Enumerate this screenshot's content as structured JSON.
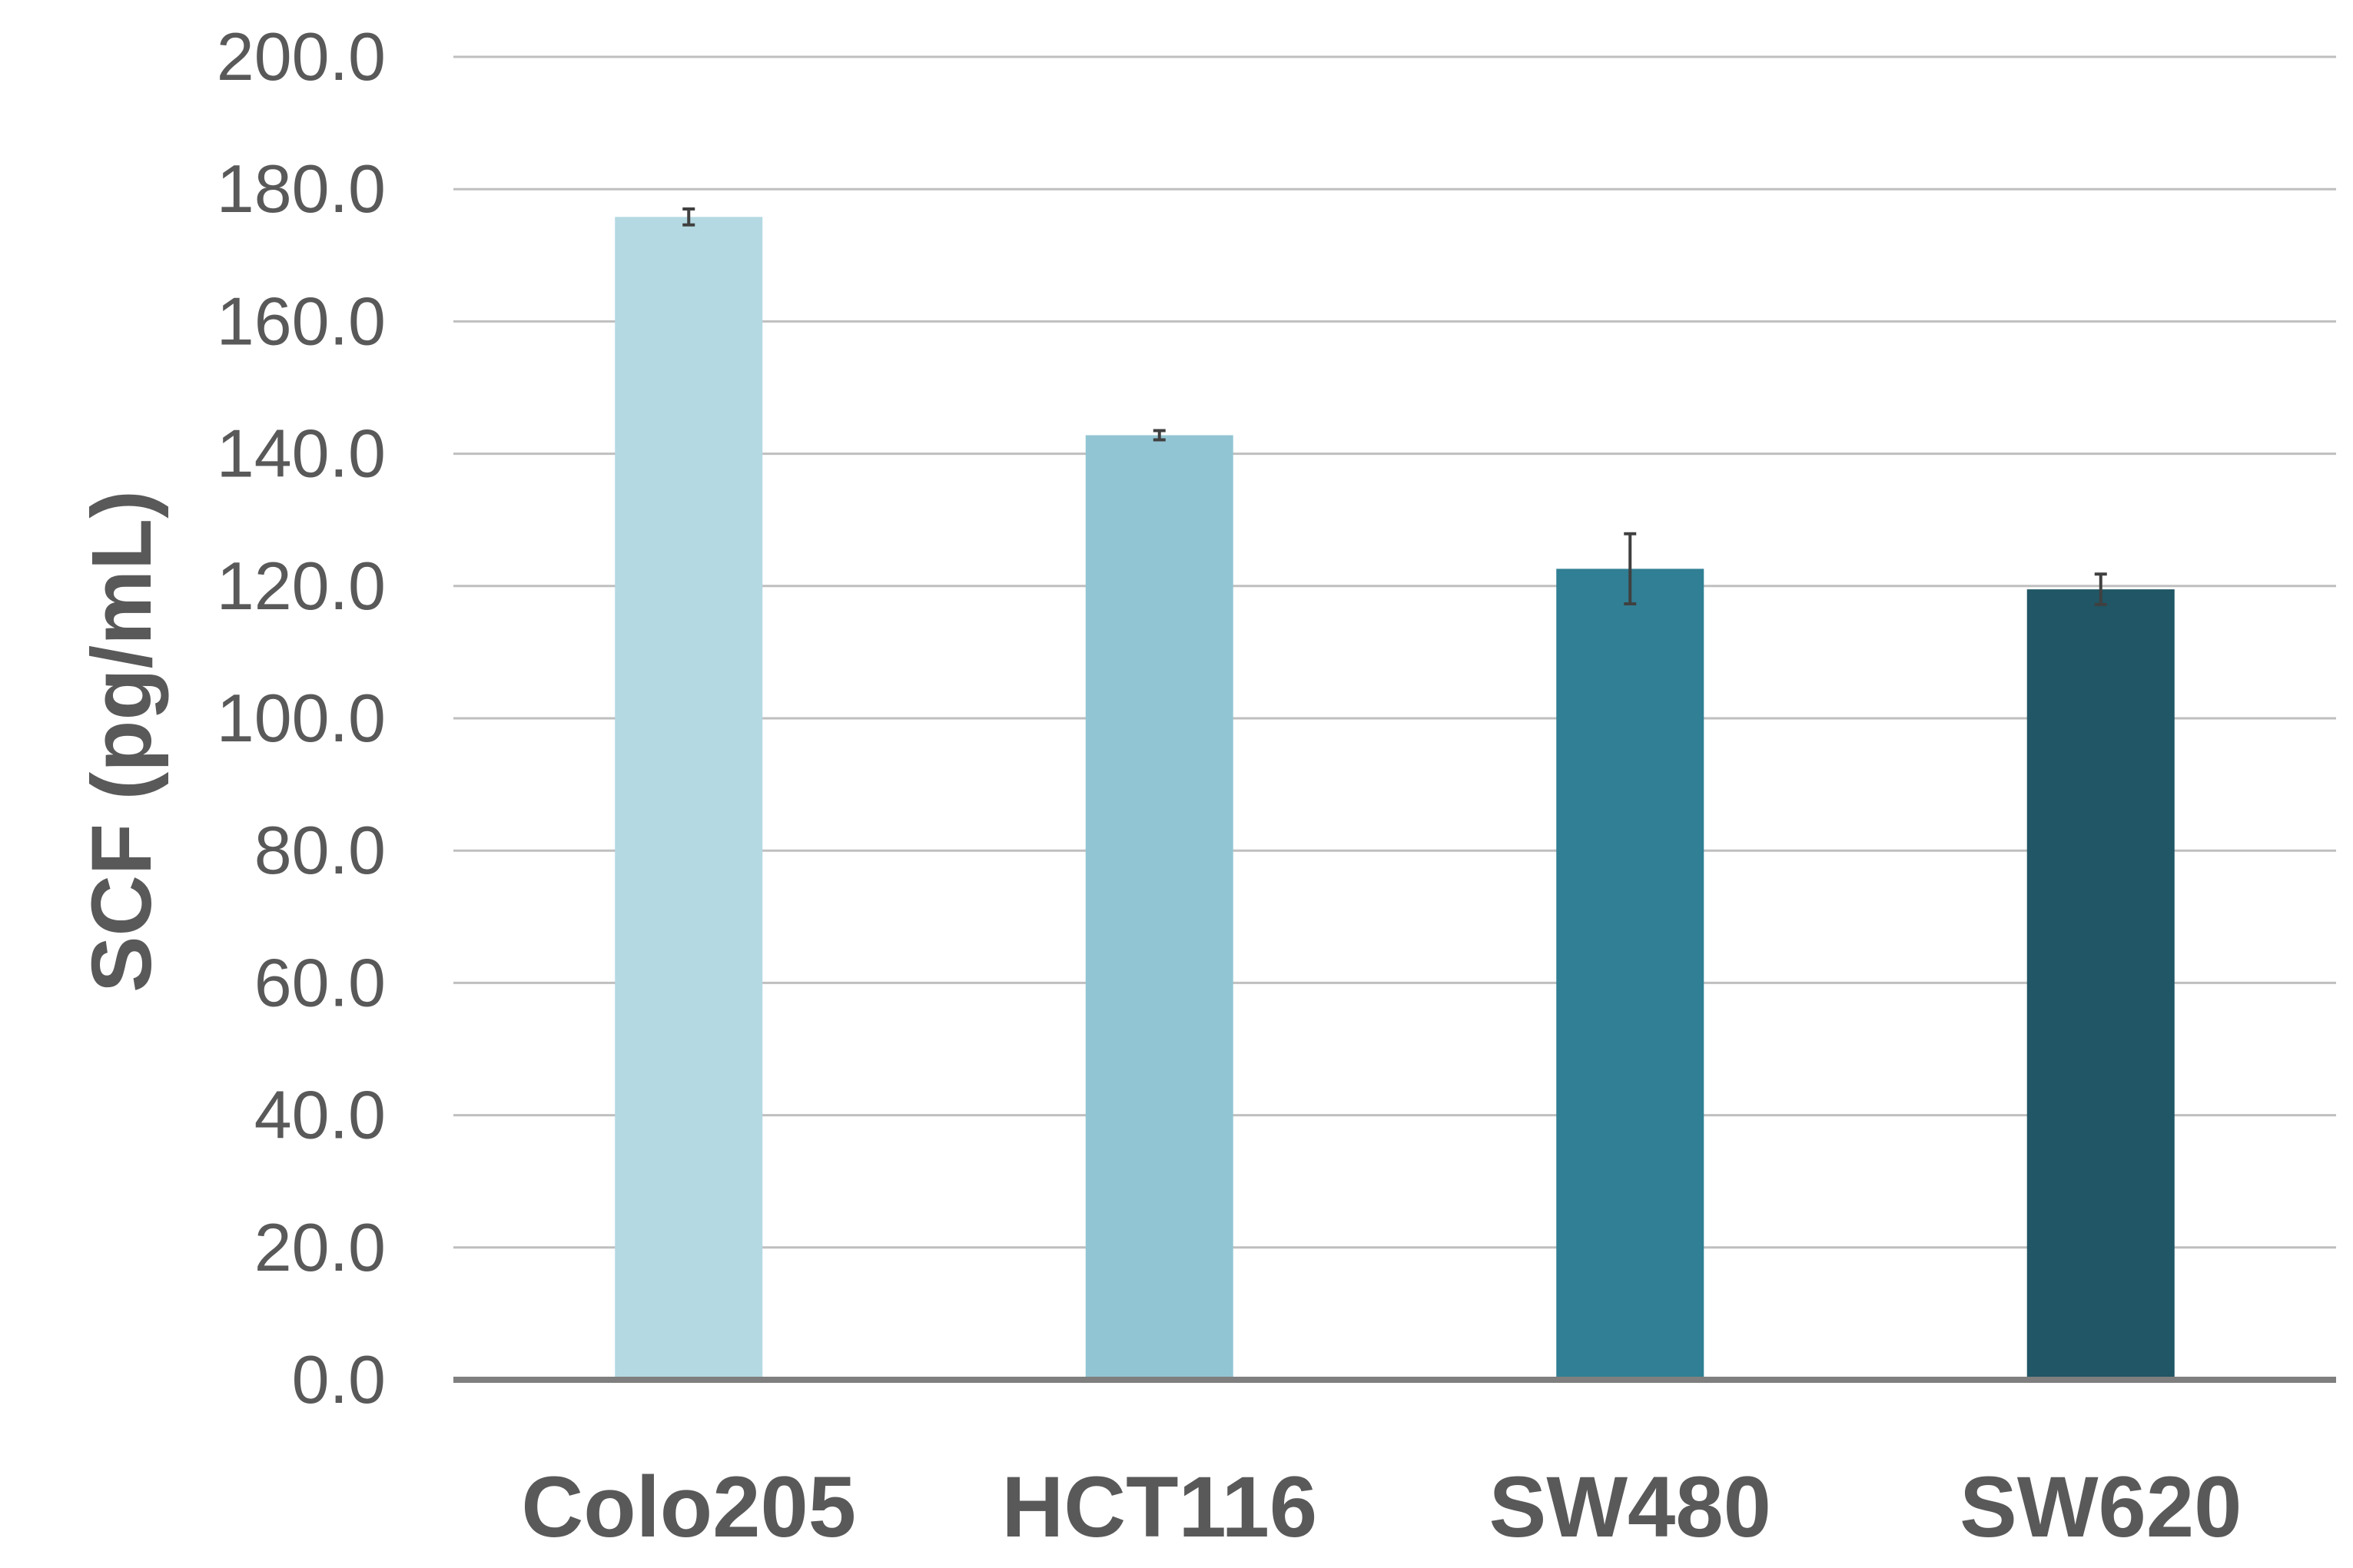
{
  "chart_data": {
    "type": "bar",
    "title": "",
    "xlabel": "",
    "ylabel": "SCF (pg/mL)",
    "ylim": [
      0,
      200
    ],
    "ytick_step": 20,
    "ytick_labels": [
      "0.0",
      "20.0",
      "40.0",
      "60.0",
      "80.0",
      "100.0",
      "120.0",
      "140.0",
      "160.0",
      "180.0",
      "200.0"
    ],
    "grid": true,
    "legend": "none",
    "categories": [
      "Colo205",
      "HCT116",
      "SW480",
      "SW620"
    ],
    "values": [
      175.8,
      142.8,
      122.6,
      119.5
    ],
    "errors": [
      1.2,
      0.7,
      5.3,
      2.3
    ],
    "colors": [
      "#b4d9e2",
      "#92c5d3",
      "#307f94",
      "#205665"
    ]
  }
}
